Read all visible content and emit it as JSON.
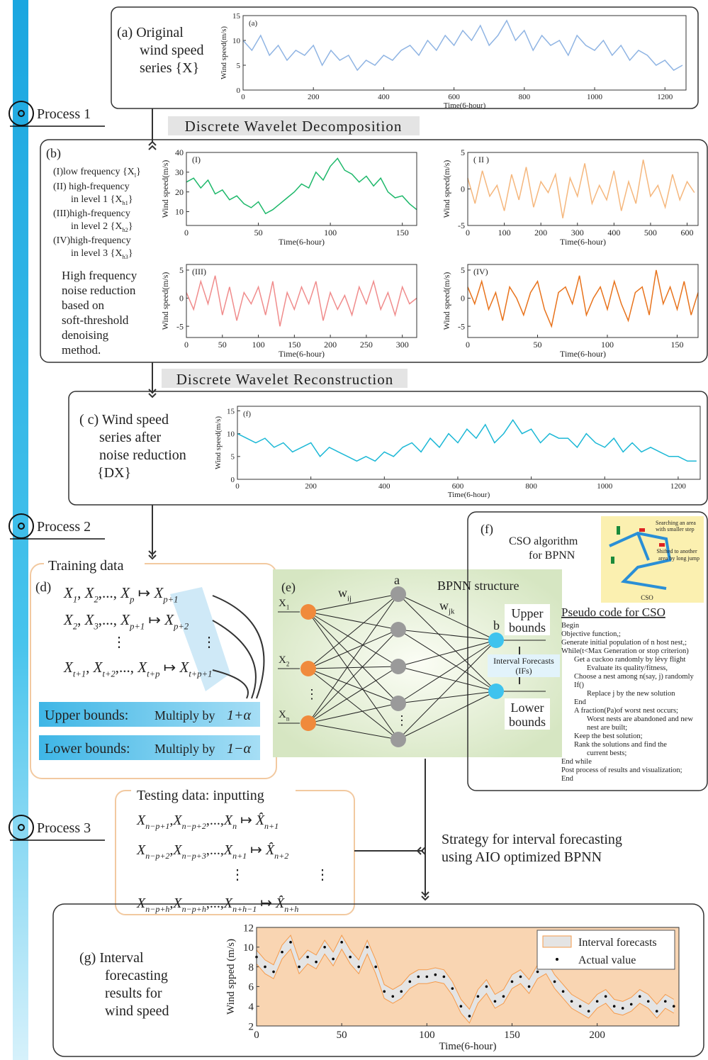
{
  "process_labels": [
    "Process 1",
    "Process 2",
    "Process 3"
  ],
  "steps": {
    "decomposition": "Discrete Wavelet Decomposition",
    "reconstruction": "Discrete Wavelet Reconstruction"
  },
  "panel_a": {
    "lines": [
      "(a) Original",
      "wind speed",
      "series {X}"
    ]
  },
  "panel_b": {
    "label": "(b)",
    "lines": [
      [
        "(I)low frequency {",
        [
          "X",
          "l"
        ],
        "}"
      ],
      [
        "(II) high-frequency"
      ],
      [
        "in level 1 {",
        [
          "X",
          "h1"
        ],
        "}"
      ],
      [
        "(III)high-frequency"
      ],
      [
        "in level 2 {",
        [
          "X",
          "h2"
        ],
        "}"
      ],
      [
        "(IV)high-frequency"
      ],
      [
        "in level 3 {",
        [
          "X",
          "h3"
        ],
        "}"
      ]
    ],
    "note": [
      "High frequency",
      "noise reduction",
      "based on",
      "soft-threshold",
      "denoising",
      "method."
    ]
  },
  "panel_c": {
    "lines": [
      "( c) Wind speed",
      "series after",
      "noise reduction",
      "{DX}"
    ]
  },
  "panel_d": {
    "title": "Training data",
    "label": "(d)",
    "formulas": [
      [
        [
          "X",
          "1"
        ],
        ", ",
        [
          "X",
          "2"
        ],
        ",..., ",
        [
          "X",
          "p"
        ],
        " ↦ ",
        [
          "X",
          "p+1"
        ]
      ],
      [
        [
          "X",
          "2"
        ],
        ", ",
        [
          "X",
          "3"
        ],
        ",..., ",
        [
          "X",
          "p+1"
        ],
        " ↦ ",
        [
          "X",
          "p+2"
        ]
      ],
      [
        [
          "X",
          "t+1"
        ],
        ", ",
        [
          "X",
          "t+2"
        ],
        ",..., ",
        [
          "X",
          "t+p"
        ],
        " ↦ ",
        [
          "X",
          "t+p+1"
        ]
      ]
    ],
    "dots": "⋮",
    "upper": [
      "Upper bounds: ",
      "Multiply by ",
      "1+α"
    ],
    "lower": [
      "Lower bounds: ",
      "Multiply by ",
      "1−α"
    ]
  },
  "panel_e": {
    "label": "(e)",
    "title": "BPNN structure",
    "inputs": [
      [
        [
          "X",
          "1"
        ]
      ],
      [
        [
          "X",
          "2"
        ]
      ],
      [
        [
          "X",
          "n"
        ]
      ]
    ],
    "w_in": [
      [
        "w",
        "ij"
      ]
    ],
    "w_out": [
      [
        "w",
        "jk"
      ]
    ],
    "hidden": "a",
    "output": "b",
    "dots": "⋮",
    "interval": [
      "Interval Forecasts",
      "(IFs)"
    ],
    "upper": [
      "Upper",
      "bounds"
    ],
    "lower": [
      "Lower",
      "bounds"
    ]
  },
  "panel_f": {
    "label": "(f)",
    "title": [
      "CSO algorithm",
      "for BPNN"
    ],
    "image_texts": [
      "Searching an area",
      "with smaller step",
      "Shifted to another",
      "area by long jump",
      "CSO"
    ],
    "pseudo_title": "Pseudo code for CSO",
    "pseudo": [
      "Begin",
      "Objective function,;",
      "Generate initial population of n host nest,;",
      "While(t<Max Generation or stop criterion)",
      "Get a cuckoo randomly by lévy flight",
      "Evaluate its quality/fitness,",
      "Choose a nest among n(say, j) randomly",
      "If()",
      "Replace j by the new solution",
      "End",
      "A fraction(Pa)of worst nest occurs;",
      "Worst nests are abandoned and new",
      "nest are built;",
      "Keep the best solution;",
      "Rank the solutions and find the",
      "current bests;",
      "End while",
      "Post process of results and visualization;",
      "End"
    ]
  },
  "testing": {
    "title": "Testing data: inputting",
    "formulas": [
      [
        [
          "X",
          "n−p+1"
        ],
        ",",
        [
          "X",
          "n−p+2"
        ],
        ",...,",
        [
          "X",
          "n"
        ],
        " ↦ ",
        [
          "X̂",
          "n+1"
        ]
      ],
      [
        [
          "X",
          "n−p+2"
        ],
        ",",
        [
          "X",
          "n−p+3"
        ],
        ",...,",
        [
          "X",
          "n+1"
        ],
        " ↦ ",
        [
          "X̂",
          "n+2"
        ]
      ],
      [
        [
          "X",
          "n−p+h"
        ],
        ",",
        [
          "X",
          "n−p+h"
        ],
        ",...,",
        [
          "X",
          "n+h−1"
        ],
        " ↦ ",
        [
          "X̂",
          "n+h"
        ]
      ]
    ],
    "dots": "⋮"
  },
  "strategy": [
    "Strategy for interval forecasting",
    "using AIO optimized BPNN"
  ],
  "panel_g": {
    "lines": [
      "(g) Interval",
      "forecasting",
      "results for",
      "wind speed"
    ]
  },
  "charts": {
    "a": {
      "type": "line",
      "tag": "(a)",
      "color": "#8fb4e3",
      "xlabel": "Time(6-hour)",
      "ylabel": "Wind speed(m/s)",
      "xlim": [
        0,
        1260
      ],
      "ylim": [
        0,
        15
      ],
      "xticks": [
        0,
        200,
        400,
        600,
        800,
        1000,
        1200
      ],
      "yticks": [
        0,
        5,
        10,
        15
      ],
      "x": [
        0,
        25,
        50,
        75,
        100,
        125,
        150,
        175,
        200,
        225,
        250,
        275,
        300,
        325,
        350,
        375,
        400,
        425,
        450,
        475,
        500,
        525,
        550,
        575,
        600,
        625,
        650,
        675,
        700,
        725,
        750,
        775,
        800,
        825,
        850,
        875,
        900,
        925,
        950,
        975,
        1000,
        1025,
        1050,
        1075,
        1100,
        1125,
        1150,
        1175,
        1200,
        1225,
        1250
      ],
      "values": [
        10,
        8,
        11,
        7,
        9,
        6,
        8,
        7,
        9,
        5,
        8,
        6,
        7,
        4,
        6,
        5,
        7,
        6,
        8,
        9,
        7,
        10,
        8,
        11,
        9,
        12,
        10,
        13,
        9,
        11,
        14,
        10,
        12,
        8,
        11,
        9,
        10,
        7,
        11,
        9,
        8,
        10,
        7,
        9,
        6,
        8,
        7,
        5,
        6,
        4,
        5
      ]
    },
    "I": {
      "type": "line",
      "tag": "(I)",
      "color": "#1db86a",
      "xlabel": "Time(6-hour)",
      "ylabel": "Wind speed(m/s)",
      "xlim": [
        0,
        160
      ],
      "ylim": [
        3,
        40
      ],
      "xticks": [
        0,
        50,
        100,
        150
      ],
      "yticks": [
        10,
        20,
        30,
        40
      ],
      "x": [
        0,
        5,
        10,
        15,
        20,
        25,
        30,
        35,
        40,
        45,
        50,
        55,
        60,
        65,
        70,
        75,
        80,
        85,
        90,
        95,
        100,
        105,
        110,
        115,
        120,
        125,
        130,
        135,
        140,
        145,
        150,
        155,
        160
      ],
      "values": [
        25,
        27,
        22,
        26,
        19,
        21,
        16,
        18,
        14,
        12,
        15,
        9,
        11,
        14,
        17,
        20,
        24,
        22,
        30,
        26,
        33,
        37,
        31,
        29,
        25,
        28,
        23,
        27,
        20,
        17,
        18,
        14,
        11
      ]
    },
    "II": {
      "type": "line",
      "tag": "( II )",
      "color": "#f5b77d",
      "xlabel": "Time(6-hour)",
      "ylabel": "Wind speed(m/s)",
      "xlim": [
        0,
        630
      ],
      "ylim": [
        -5,
        5
      ],
      "xticks": [
        0,
        100,
        200,
        300,
        400,
        500,
        600
      ],
      "yticks": [
        -5,
        0,
        5
      ],
      "x": [
        0,
        20,
        40,
        60,
        80,
        100,
        120,
        140,
        160,
        180,
        200,
        220,
        240,
        260,
        280,
        300,
        320,
        340,
        360,
        380,
        400,
        420,
        440,
        460,
        480,
        500,
        520,
        540,
        560,
        580,
        600,
        620
      ],
      "values": [
        1.5,
        -2,
        2.5,
        -1,
        0.5,
        -3,
        2,
        -1.5,
        3,
        -2.5,
        1,
        -0.5,
        2,
        -4,
        1.5,
        -1,
        3.5,
        -2,
        0.5,
        -1.5,
        2.5,
        -3,
        1,
        -2,
        4,
        -1,
        0.5,
        -2.5,
        2,
        -1.5,
        1,
        -0.5
      ]
    },
    "III": {
      "type": "line",
      "tag": "(III)",
      "color": "#f08c8c",
      "xlabel": "Time(6-hour)",
      "ylabel": "Wind speed(m/s)",
      "xlim": [
        0,
        320
      ],
      "ylim": [
        -7,
        6
      ],
      "xticks": [
        0,
        50,
        100,
        150,
        200,
        250,
        300
      ],
      "yticks": [
        -5,
        0,
        5
      ],
      "x": [
        0,
        10,
        20,
        30,
        40,
        50,
        60,
        70,
        80,
        90,
        100,
        110,
        120,
        130,
        140,
        150,
        160,
        170,
        180,
        190,
        200,
        210,
        220,
        230,
        240,
        250,
        260,
        270,
        280,
        290,
        300,
        310,
        320
      ],
      "values": [
        1,
        -2,
        3,
        -1,
        4,
        -3,
        2,
        -4,
        1,
        -1,
        2,
        -3,
        3,
        -5,
        1,
        -2,
        2,
        -1,
        3,
        -4,
        1,
        -2,
        0.5,
        -3,
        2,
        -1,
        3,
        -2,
        1,
        -3,
        2,
        -1,
        0
      ]
    },
    "IV": {
      "type": "line",
      "tag": "(IV)",
      "color": "#e8731c",
      "xlabel": "Time(6-hour)",
      "ylabel": "Wind speed(m/s)",
      "xlim": [
        0,
        165
      ],
      "ylim": [
        -7,
        6
      ],
      "xticks": [
        0,
        50,
        100,
        150
      ],
      "yticks": [
        -5,
        0,
        5
      ],
      "x": [
        0,
        5,
        10,
        15,
        20,
        25,
        30,
        35,
        40,
        45,
        50,
        55,
        60,
        65,
        70,
        75,
        80,
        85,
        90,
        95,
        100,
        105,
        110,
        115,
        120,
        125,
        130,
        135,
        140,
        145,
        150,
        155,
        160,
        165
      ],
      "values": [
        2,
        -1,
        3,
        -2,
        1,
        -4,
        2,
        0,
        -3,
        1,
        3,
        -2,
        -5,
        1,
        2,
        -1,
        4,
        -3,
        0,
        2,
        -2,
        3,
        -1,
        -4,
        1,
        2,
        -3,
        5,
        -1,
        2,
        -2,
        3,
        -3,
        1
      ]
    },
    "c": {
      "type": "line",
      "tag": "(f)",
      "color": "#1cb8d6",
      "xlabel": "Time(6-hour)",
      "ylabel": "Wind speed(m/s)",
      "xlim": [
        0,
        1260
      ],
      "ylim": [
        0,
        16
      ],
      "xticks": [
        0,
        200,
        400,
        600,
        800,
        1000,
        1200
      ],
      "yticks": [
        0,
        5,
        10,
        15
      ],
      "x": [
        0,
        25,
        50,
        75,
        100,
        125,
        150,
        175,
        200,
        225,
        250,
        275,
        300,
        325,
        350,
        375,
        400,
        425,
        450,
        475,
        500,
        525,
        550,
        575,
        600,
        625,
        650,
        675,
        700,
        725,
        750,
        775,
        800,
        825,
        850,
        875,
        900,
        925,
        950,
        975,
        1000,
        1025,
        1050,
        1075,
        1100,
        1125,
        1150,
        1175,
        1200,
        1225,
        1250
      ],
      "values": [
        10,
        9,
        8,
        9,
        7,
        8,
        6,
        7,
        8,
        5,
        7,
        6,
        5,
        4,
        5,
        4,
        6,
        5,
        7,
        8,
        6,
        9,
        7,
        10,
        8,
        11,
        9,
        12,
        8,
        10,
        13,
        10,
        11,
        8,
        10,
        9,
        9,
        7,
        10,
        8,
        7,
        9,
        6,
        8,
        6,
        7,
        6,
        5,
        5,
        4,
        4
      ]
    },
    "g": {
      "type": "band",
      "background": "#f9d5b2",
      "xlabel": "Time(6-hour)",
      "ylabel": "Wind spped (m/s)",
      "xlim": [
        0,
        248
      ],
      "ylim": [
        2,
        12
      ],
      "xticks": [
        0,
        50,
        100,
        150,
        200
      ],
      "yticks": [
        2,
        4,
        6,
        8,
        10,
        12
      ],
      "x": [
        0,
        5,
        10,
        15,
        20,
        25,
        30,
        35,
        40,
        45,
        50,
        55,
        60,
        65,
        70,
        75,
        80,
        85,
        90,
        95,
        100,
        105,
        110,
        115,
        120,
        125,
        130,
        135,
        140,
        145,
        150,
        155,
        160,
        165,
        170,
        175,
        180,
        185,
        190,
        195,
        200,
        205,
        210,
        215,
        220,
        225,
        230,
        235,
        240,
        245
      ],
      "series": [
        {
          "name": "Interval forecasts",
          "color": "#f59a4a",
          "fill": "#e4e4e4",
          "upper": [
            9.7,
            8.7,
            8.2,
            10.2,
            11.2,
            8.7,
            9.7,
            9.2,
            10.7,
            9.5,
            11.2,
            9.7,
            8.7,
            10.7,
            8.7,
            6.2,
            5.7,
            6.2,
            7.2,
            7.7,
            7.7,
            7.9,
            7.7,
            6.5,
            4.7,
            3.7,
            5.7,
            6.7,
            5.2,
            5.7,
            7.2,
            7.7,
            6.7,
            8.2,
            8.7,
            7.2,
            6.2,
            5.2,
            4.7,
            4.2,
            5.2,
            5.7,
            4.7,
            4.5,
            4.9,
            5.7,
            5.2,
            4.2,
            5.2,
            4.7
          ],
          "lower": [
            8.3,
            7.3,
            6.8,
            8.8,
            9.8,
            7.3,
            8.3,
            7.8,
            9.3,
            8.1,
            9.8,
            8.3,
            7.3,
            9.3,
            7.3,
            4.8,
            4.3,
            4.8,
            5.8,
            6.3,
            6.3,
            6.5,
            6.3,
            5.1,
            3.3,
            2.3,
            4.3,
            5.3,
            3.8,
            4.3,
            5.8,
            6.3,
            5.3,
            6.8,
            7.3,
            5.8,
            4.8,
            3.8,
            3.3,
            2.8,
            3.8,
            4.3,
            3.3,
            3.1,
            3.5,
            4.3,
            3.8,
            2.8,
            3.8,
            3.3
          ]
        },
        {
          "name": "Actual value",
          "color": "#000000",
          "values": [
            9,
            8,
            7.5,
            9.5,
            10.5,
            8,
            9,
            8.5,
            10,
            8.8,
            10.5,
            9,
            8,
            10,
            8,
            5.5,
            5,
            5.5,
            6.5,
            7,
            7,
            7.2,
            7,
            5.8,
            4,
            3,
            5,
            6,
            4.5,
            5,
            6.5,
            7,
            6,
            7.5,
            8,
            6.5,
            5.5,
            4.5,
            4,
            3.5,
            4.5,
            5,
            4,
            3.8,
            4.2,
            5,
            4.5,
            3.5,
            4.5,
            4
          ]
        }
      ]
    }
  }
}
